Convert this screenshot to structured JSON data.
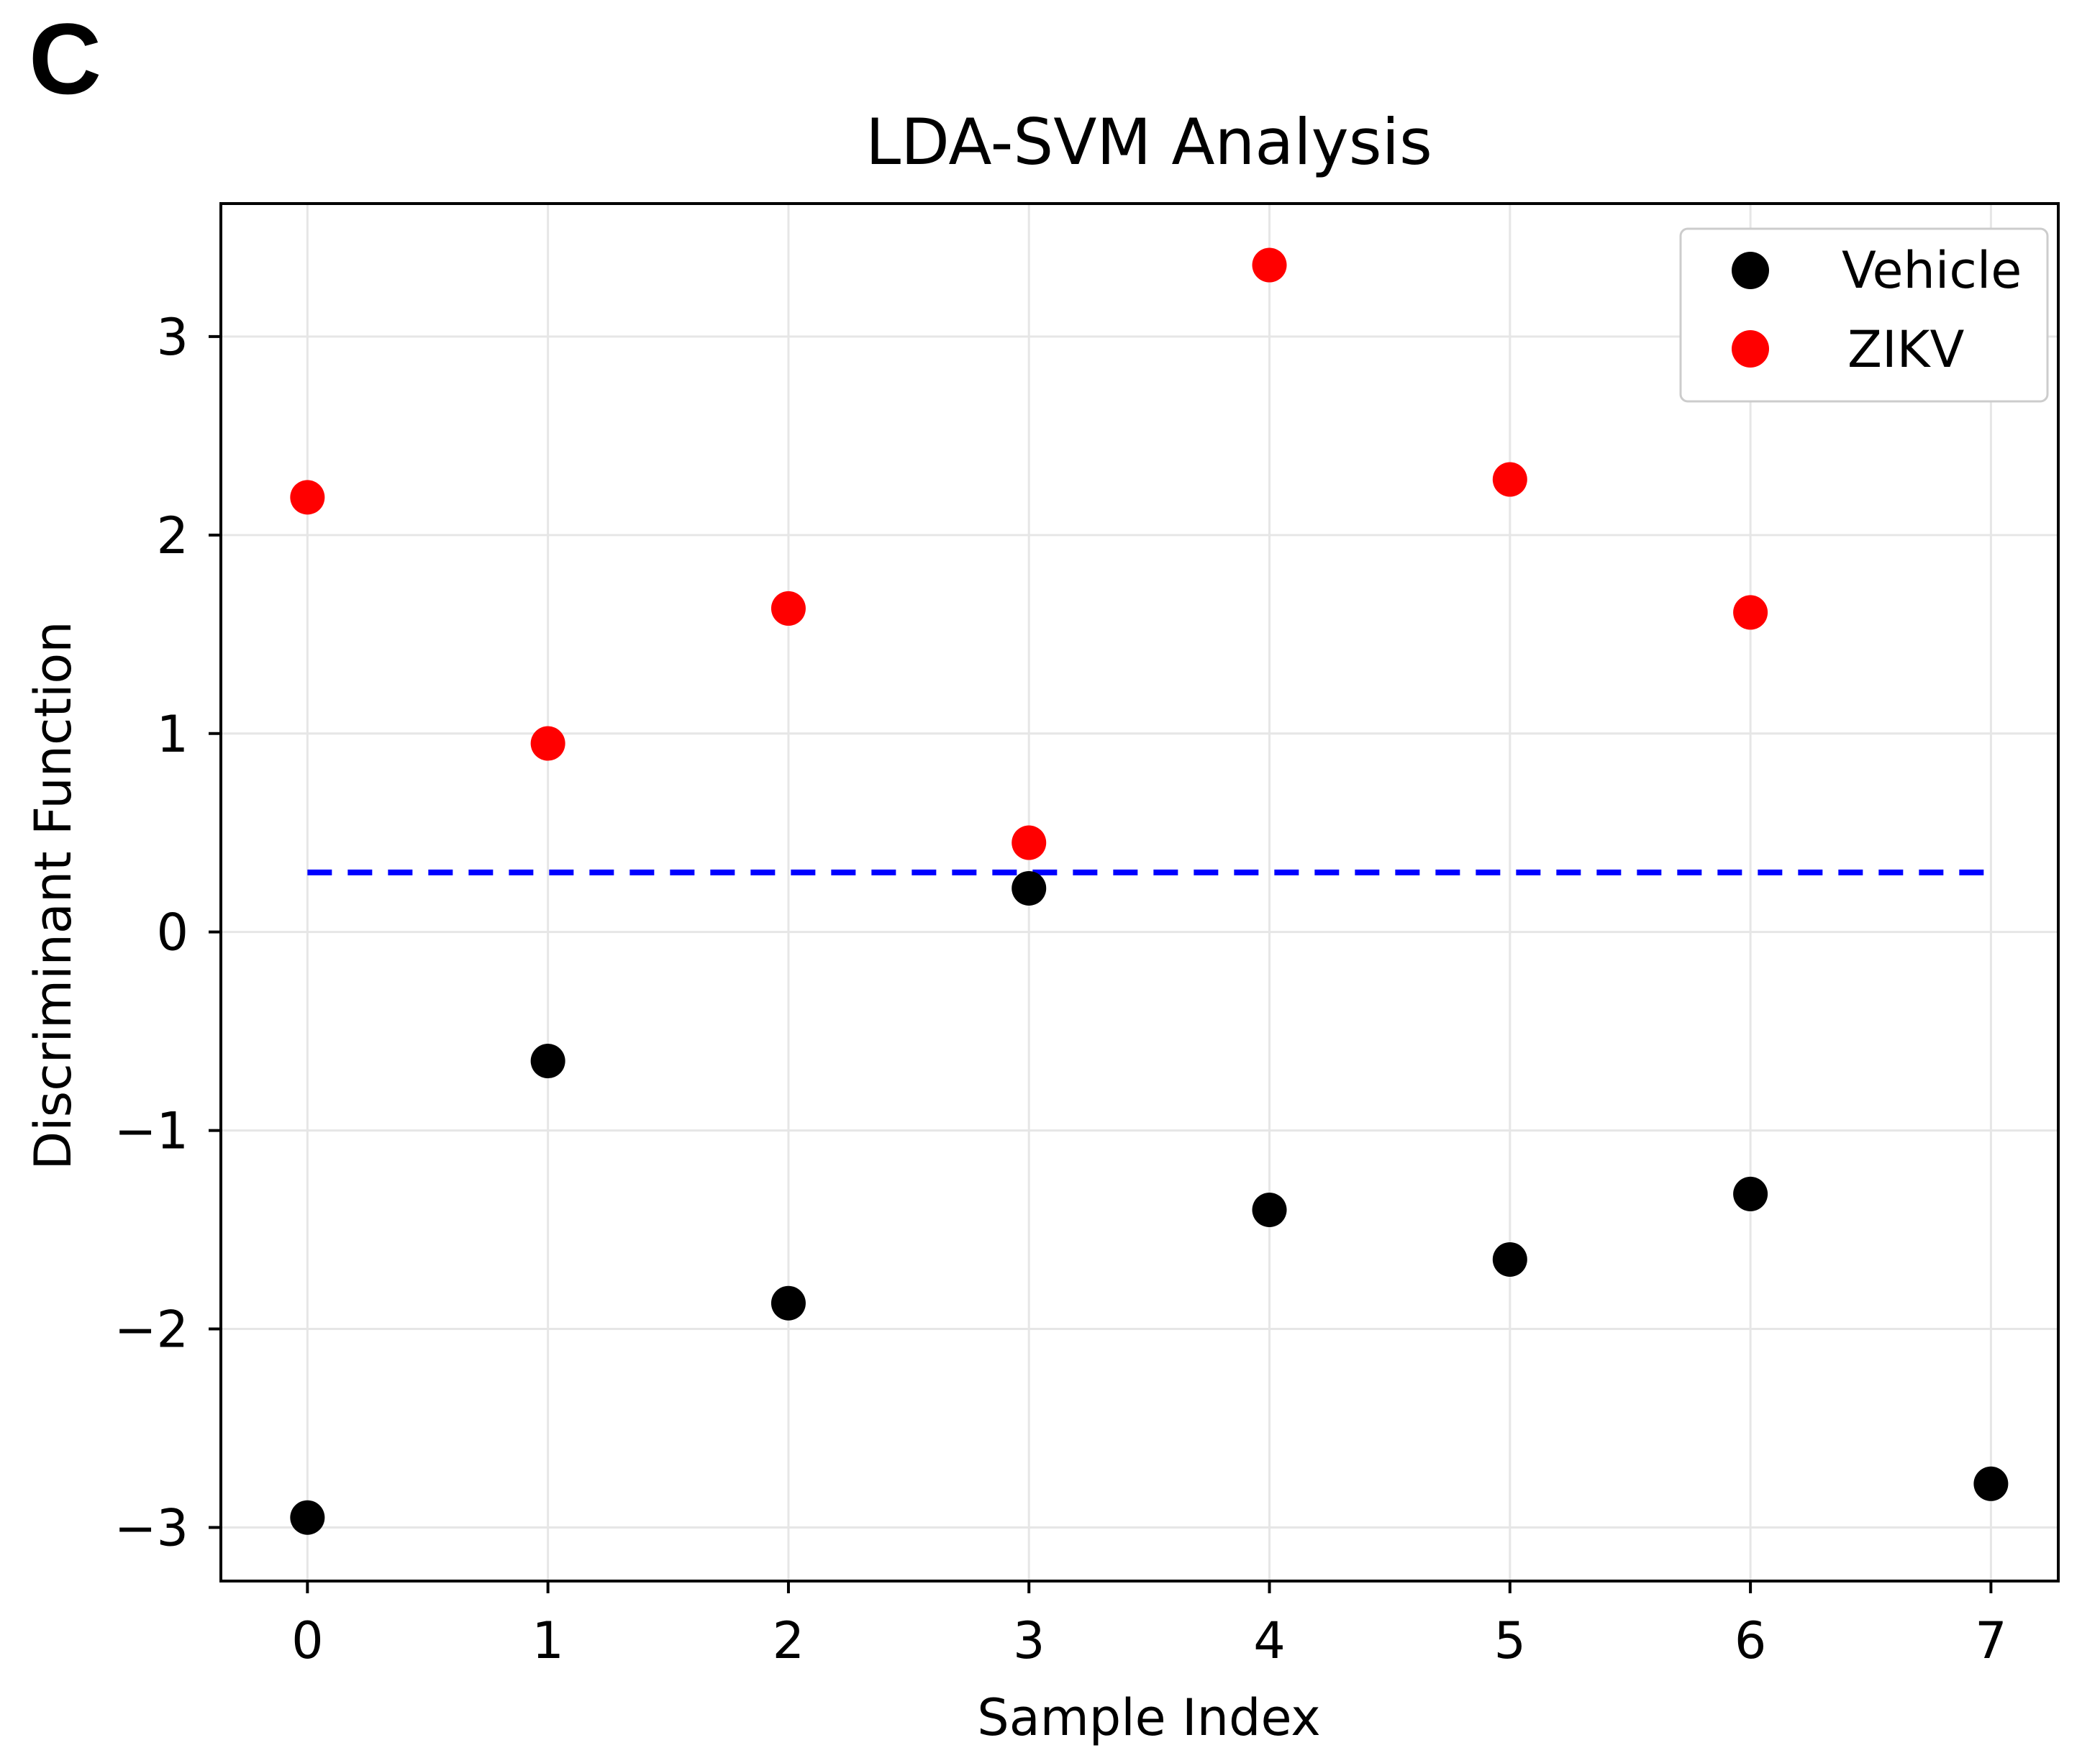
{
  "panel_label": "C",
  "colors": {
    "vehicle": "#000000",
    "zikv": "#ff0000",
    "threshold": "#0000ff",
    "grid": "#e6e6e6",
    "axes": "#000000",
    "legend_border": "#cccccc"
  },
  "chart_data": {
    "type": "scatter",
    "title": "LDA-SVM Analysis",
    "xlabel": "Sample Index",
    "ylabel": "Discriminant Function",
    "xlim": [
      -0.36,
      7.28
    ],
    "ylim": [
      -3.27,
      3.67
    ],
    "xticks": [
      0,
      1,
      2,
      3,
      4,
      5,
      6,
      7
    ],
    "xtick_labels": [
      "0",
      "1",
      "2",
      "3",
      "4",
      "5",
      "6",
      "7"
    ],
    "yticks": [
      -3,
      -2,
      -1,
      0,
      1,
      2,
      3
    ],
    "ytick_labels": [
      "−3",
      "−2",
      "−1",
      "0",
      "1",
      "2",
      "3"
    ],
    "grid": true,
    "legend_position": "top-right",
    "series": [
      {
        "name": "Vehicle",
        "color": "#000000",
        "x": [
          0,
          1,
          2,
          3,
          4,
          5,
          6,
          7
        ],
        "y": [
          -2.95,
          -0.65,
          -1.87,
          0.22,
          -1.4,
          -1.65,
          -1.32,
          -2.78
        ]
      },
      {
        "name": "ZIKV",
        "color": "#ff0000",
        "x": [
          0,
          1,
          2,
          3,
          4,
          5,
          6
        ],
        "y": [
          2.19,
          0.95,
          1.63,
          0.45,
          3.36,
          2.28,
          1.61
        ]
      }
    ],
    "threshold": {
      "y": 0.3,
      "x_start": 0,
      "x_end": 7,
      "style": "dashed",
      "color": "#0000ff"
    }
  }
}
